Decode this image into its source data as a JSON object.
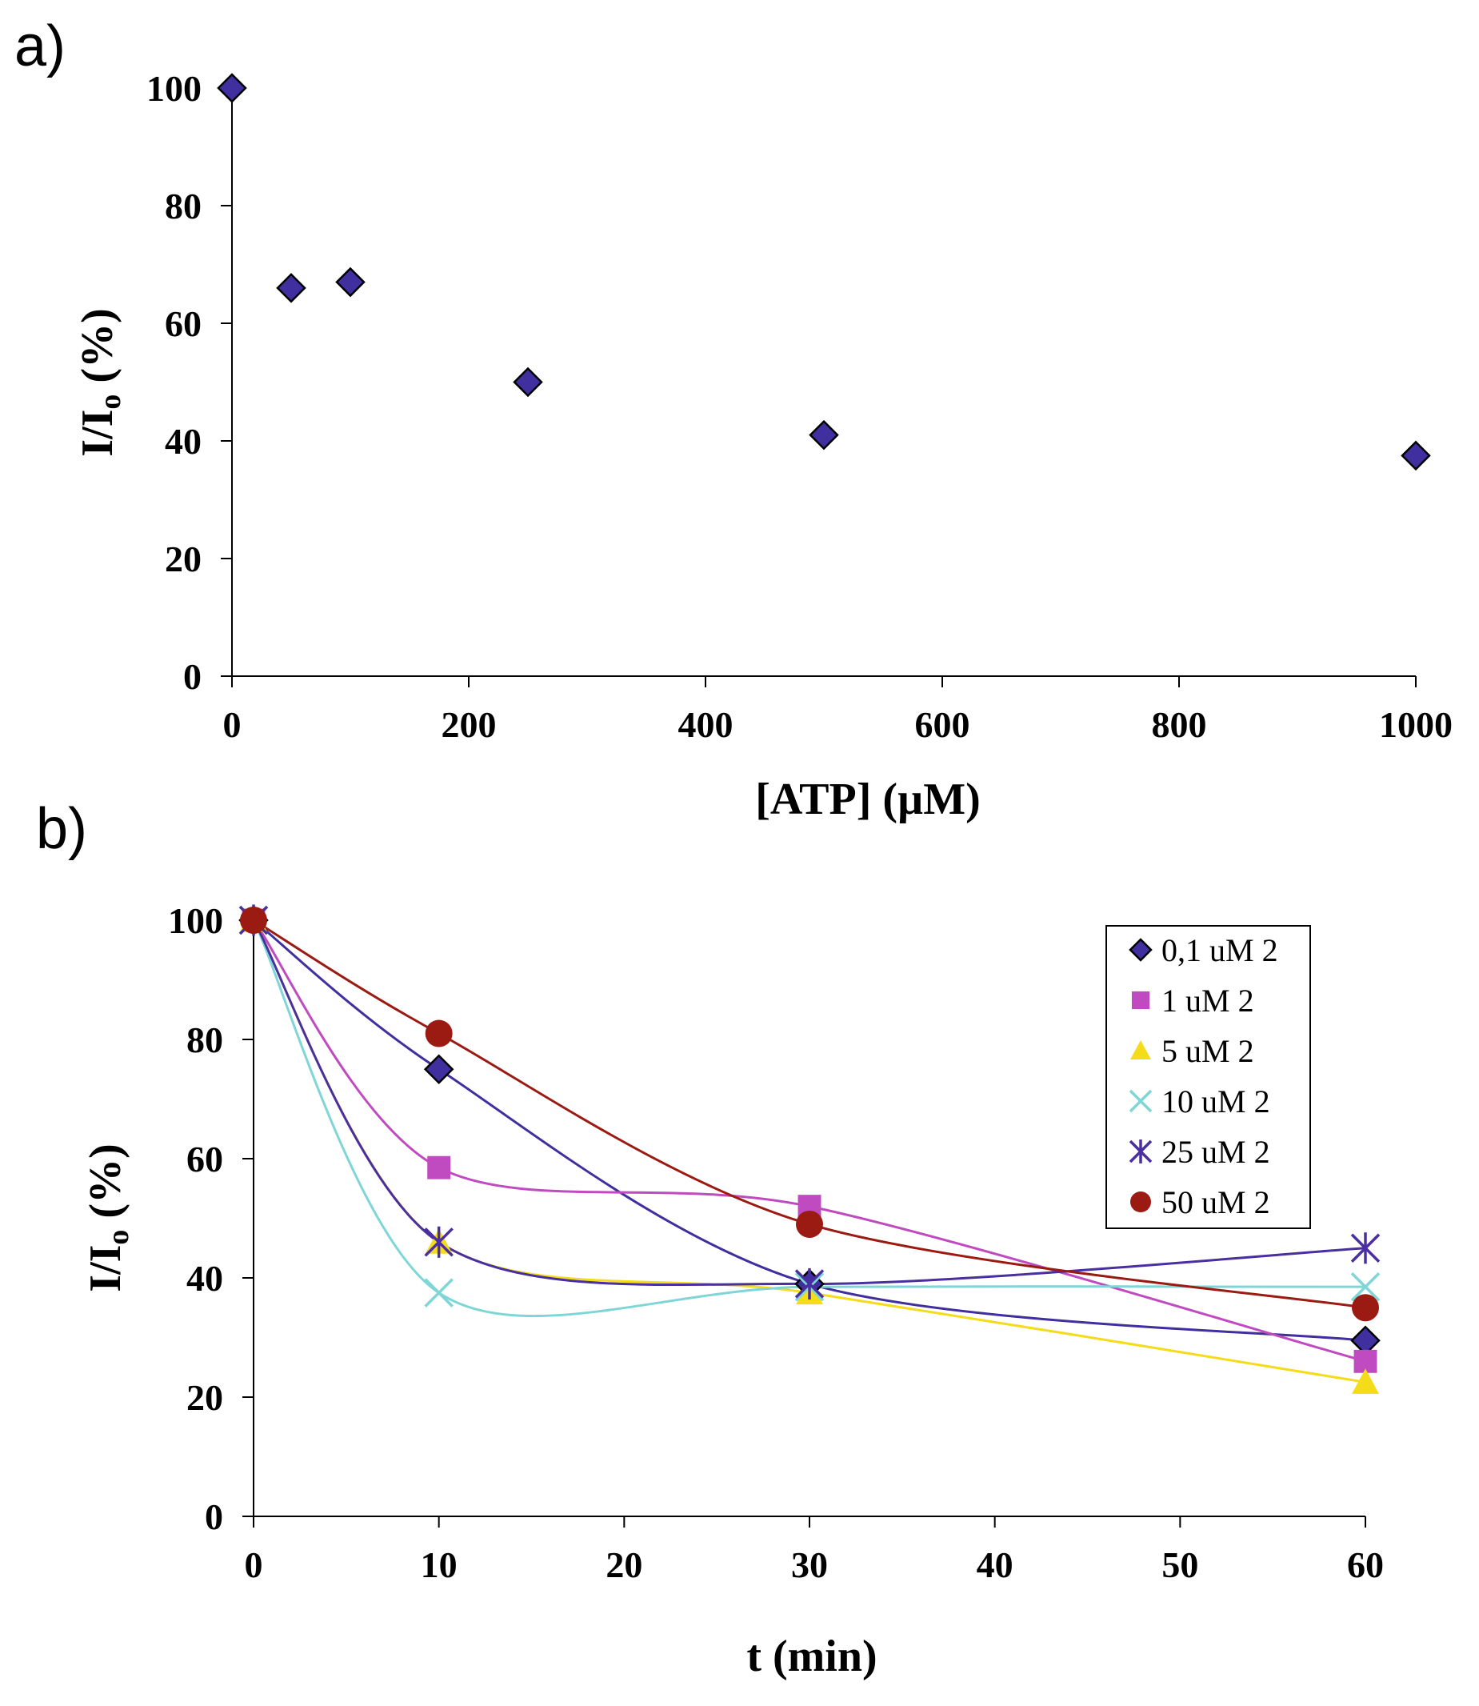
{
  "chart_data": [
    {
      "panel_label": "a)",
      "type": "scatter",
      "xlabel": "[ATP] (µM)",
      "ylabel": {
        "main": "I/I",
        "sub": "o",
        "tail": " (%)"
      },
      "xlim": [
        0,
        1000
      ],
      "ylim": [
        0,
        100
      ],
      "xticks": [
        0,
        200,
        400,
        600,
        800,
        1000
      ],
      "yticks": [
        0,
        20,
        40,
        60,
        80,
        100
      ],
      "series": [
        {
          "name": "ATP",
          "marker": "diamond",
          "color": "#3f2f9f",
          "x": [
            0,
            50,
            100,
            250,
            500,
            1000
          ],
          "y": [
            100,
            66,
            67,
            50,
            41,
            37.5
          ]
        }
      ]
    },
    {
      "panel_label": "b)",
      "type": "line",
      "xlabel": "t (min)",
      "ylabel": {
        "main": "I/I",
        "sub": "o",
        "tail": " (%)"
      },
      "ylim": [
        0,
        100
      ],
      "xticks": [
        0,
        10,
        20,
        30,
        40,
        50,
        60
      ],
      "yticks": [
        0,
        20,
        40,
        60,
        80,
        100
      ],
      "x": [
        0,
        10,
        30,
        60
      ],
      "legend_position": "top-right",
      "series": [
        {
          "name": "0,1 uM 2",
          "marker": "diamond",
          "color": "#3f2f9f",
          "y": [
            100,
            75,
            39,
            29.5
          ]
        },
        {
          "name": "1 uM  2",
          "marker": "square",
          "color": "#c04bc0",
          "y": [
            100,
            58.5,
            52,
            26
          ]
        },
        {
          "name": "5 uM 2",
          "marker": "triangle",
          "color": "#f5dc1a",
          "y": [
            100,
            46,
            37.5,
            22.5
          ]
        },
        {
          "name": "10 uM 2",
          "marker": "x",
          "color": "#7fd6d6",
          "y": [
            100,
            37.5,
            38.5,
            38.5
          ]
        },
        {
          "name": "25 uM 2",
          "marker": "asterisk",
          "color": "#4a2fa0",
          "y": [
            100,
            46,
            39,
            45
          ]
        },
        {
          "name": "50 uM 2",
          "marker": "circle",
          "color": "#9b1b12",
          "y": [
            100,
            81,
            49,
            35
          ]
        }
      ]
    }
  ]
}
